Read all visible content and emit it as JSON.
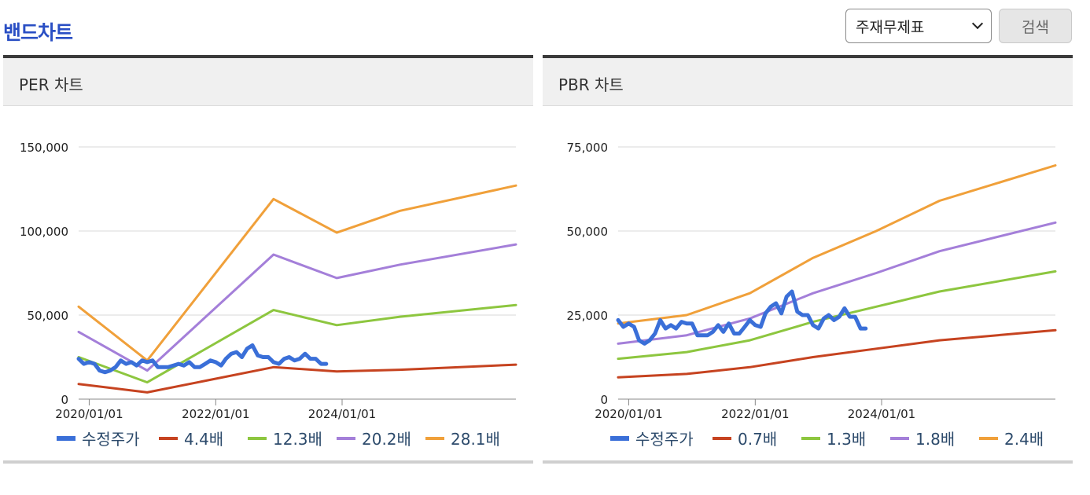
{
  "page": {
    "title": "밴드차트"
  },
  "controls": {
    "select_value": "주재무제표",
    "search_label": "검색"
  },
  "colors": {
    "price": "#3a6fd8",
    "band1": "#c64320",
    "band2": "#8dc63f",
    "band3": "#a47fd9",
    "band4": "#f0a03a",
    "grid": "#d9d9d9"
  },
  "panels": [
    {
      "title": "PER 차트"
    },
    {
      "title": "PBR 차트"
    }
  ],
  "chart_data": [
    {
      "type": "line",
      "title": "PER 차트",
      "xlabel": "",
      "ylabel": "",
      "x_range": [
        "2019-11-01",
        "2026-10-01"
      ],
      "ylim": [
        0,
        150000
      ],
      "y_ticks": [
        0,
        50000,
        100000,
        150000
      ],
      "y_tick_labels": [
        "0",
        "50,000",
        "100,000",
        "150,000"
      ],
      "x_ticks": [
        "2020-01-01",
        "2022-01-01",
        "2024-01-01"
      ],
      "x_tick_labels": [
        "2020/01/01",
        "2022/01/01",
        "2024/01/01"
      ],
      "grid": "horizontal",
      "legend_position": "bottom",
      "series": [
        {
          "name": "수정주가",
          "color": "#3a6fd8",
          "width": 5,
          "x": [
            "2019-11-01",
            "2019-12-01",
            "2020-01-01",
            "2020-02-01",
            "2020-03-01",
            "2020-04-01",
            "2020-05-01",
            "2020-06-01",
            "2020-07-01",
            "2020-08-01",
            "2020-09-01",
            "2020-10-01",
            "2020-11-01",
            "2020-12-01",
            "2021-01-01",
            "2021-02-01",
            "2021-03-01",
            "2021-04-01",
            "2021-05-01",
            "2021-06-01",
            "2021-07-01",
            "2021-08-01",
            "2021-09-01",
            "2021-10-01",
            "2021-11-01",
            "2021-12-01",
            "2022-01-01",
            "2022-02-01",
            "2022-03-01",
            "2022-04-01",
            "2022-05-01",
            "2022-06-01",
            "2022-07-01",
            "2022-08-01",
            "2022-09-01",
            "2022-10-01",
            "2022-11-01",
            "2022-12-01",
            "2023-01-01",
            "2023-02-01",
            "2023-03-01",
            "2023-04-01",
            "2023-05-01",
            "2023-06-01",
            "2023-07-01",
            "2023-08-01",
            "2023-09-01",
            "2023-10-01"
          ],
          "y": [
            24000,
            21000,
            22000,
            21000,
            17000,
            16000,
            17000,
            19000,
            23000,
            21000,
            22000,
            20000,
            23000,
            22000,
            23000,
            19000,
            19000,
            19000,
            20000,
            21000,
            20000,
            22000,
            19000,
            19000,
            21000,
            23000,
            22000,
            20000,
            24000,
            27000,
            28000,
            25000,
            30000,
            32000,
            26000,
            25000,
            25000,
            22000,
            21000,
            24000,
            25000,
            23000,
            24000,
            27000,
            24000,
            24000,
            21000,
            21000
          ]
        },
        {
          "name": "4.4배",
          "color": "#c64320",
          "width": 3,
          "x": [
            "2019-11-01",
            "2020-12-01",
            "2022-12-01",
            "2023-12-01",
            "2024-12-01",
            "2026-10-01"
          ],
          "y": [
            9000,
            4000,
            19000,
            16500,
            17500,
            20500
          ]
        },
        {
          "name": "12.3배",
          "color": "#8dc63f",
          "width": 3,
          "x": [
            "2019-11-01",
            "2020-12-01",
            "2022-12-01",
            "2023-12-01",
            "2024-12-01",
            "2026-10-01"
          ],
          "y": [
            25000,
            10000,
            53000,
            44000,
            49000,
            56000
          ]
        },
        {
          "name": "20.2배",
          "color": "#a47fd9",
          "width": 3,
          "x": [
            "2019-11-01",
            "2020-12-01",
            "2022-12-01",
            "2023-12-01",
            "2024-12-01",
            "2026-10-01"
          ],
          "y": [
            40000,
            17000,
            86000,
            72000,
            80000,
            92000
          ]
        },
        {
          "name": "28.1배",
          "color": "#f0a03a",
          "width": 3,
          "x": [
            "2019-11-01",
            "2020-12-01",
            "2022-12-01",
            "2023-12-01",
            "2024-12-01",
            "2026-10-01"
          ],
          "y": [
            55000,
            23000,
            119000,
            99000,
            112000,
            127000
          ]
        }
      ]
    },
    {
      "type": "line",
      "title": "PBR 차트",
      "xlabel": "",
      "ylabel": "",
      "x_range": [
        "2019-11-01",
        "2026-10-01"
      ],
      "ylim": [
        0,
        75000
      ],
      "y_ticks": [
        0,
        25000,
        50000,
        75000
      ],
      "y_tick_labels": [
        "0",
        "25,000",
        "50,000",
        "75,000"
      ],
      "x_ticks": [
        "2020-01-01",
        "2022-01-01",
        "2024-01-01"
      ],
      "x_tick_labels": [
        "2020/01/01",
        "2022/01/01",
        "2024/01/01"
      ],
      "grid": "horizontal",
      "legend_position": "bottom",
      "series": [
        {
          "name": "수정주가",
          "color": "#3a6fd8",
          "width": 5,
          "x": [
            "2019-11-01",
            "2019-12-01",
            "2020-01-01",
            "2020-02-01",
            "2020-03-01",
            "2020-04-01",
            "2020-05-01",
            "2020-06-01",
            "2020-07-01",
            "2020-08-01",
            "2020-09-01",
            "2020-10-01",
            "2020-11-01",
            "2020-12-01",
            "2021-01-01",
            "2021-02-01",
            "2021-03-01",
            "2021-04-01",
            "2021-05-01",
            "2021-06-01",
            "2021-07-01",
            "2021-08-01",
            "2021-09-01",
            "2021-10-01",
            "2021-11-01",
            "2021-12-01",
            "2022-01-01",
            "2022-02-01",
            "2022-03-01",
            "2022-04-01",
            "2022-05-01",
            "2022-06-01",
            "2022-07-01",
            "2022-08-01",
            "2022-09-01",
            "2022-10-01",
            "2022-11-01",
            "2022-12-01",
            "2023-01-01",
            "2023-02-01",
            "2023-03-01",
            "2023-04-01",
            "2023-05-01",
            "2023-06-01",
            "2023-07-01",
            "2023-08-01",
            "2023-09-01",
            "2023-10-01"
          ],
          "y": [
            23500,
            21500,
            22500,
            21500,
            17500,
            16500,
            17500,
            19500,
            23500,
            21000,
            22000,
            21000,
            23000,
            22500,
            22500,
            19000,
            19000,
            19000,
            20000,
            22000,
            20000,
            22500,
            19500,
            19500,
            21500,
            23500,
            22000,
            21500,
            25500,
            27500,
            28500,
            25500,
            30500,
            32000,
            26000,
            25000,
            25000,
            22000,
            21000,
            24000,
            25000,
            23500,
            24500,
            27000,
            24500,
            24500,
            21000,
            21000
          ]
        },
        {
          "name": "0.7배",
          "color": "#c64320",
          "width": 3,
          "x": [
            "2019-11-01",
            "2020-12-01",
            "2021-12-01",
            "2022-12-01",
            "2023-12-01",
            "2024-12-01",
            "2026-10-01"
          ],
          "y": [
            6500,
            7500,
            9500,
            12500,
            15000,
            17500,
            20500
          ]
        },
        {
          "name": "1.3배",
          "color": "#8dc63f",
          "width": 3,
          "x": [
            "2019-11-01",
            "2020-12-01",
            "2021-12-01",
            "2022-12-01",
            "2023-12-01",
            "2024-12-01",
            "2026-10-01"
          ],
          "y": [
            12000,
            14000,
            17500,
            23000,
            27500,
            32000,
            38000
          ]
        },
        {
          "name": "1.8배",
          "color": "#a47fd9",
          "width": 3,
          "x": [
            "2019-11-01",
            "2020-12-01",
            "2021-12-01",
            "2022-12-01",
            "2023-12-01",
            "2024-12-01",
            "2026-10-01"
          ],
          "y": [
            16500,
            19000,
            24000,
            31500,
            37500,
            44000,
            52500
          ]
        },
        {
          "name": "2.4배",
          "color": "#f0a03a",
          "width": 3,
          "x": [
            "2019-11-01",
            "2020-12-01",
            "2021-12-01",
            "2022-12-01",
            "2023-12-01",
            "2024-12-01",
            "2026-10-01"
          ],
          "y": [
            22500,
            25000,
            31500,
            42000,
            50000,
            59000,
            69500
          ]
        }
      ]
    }
  ]
}
